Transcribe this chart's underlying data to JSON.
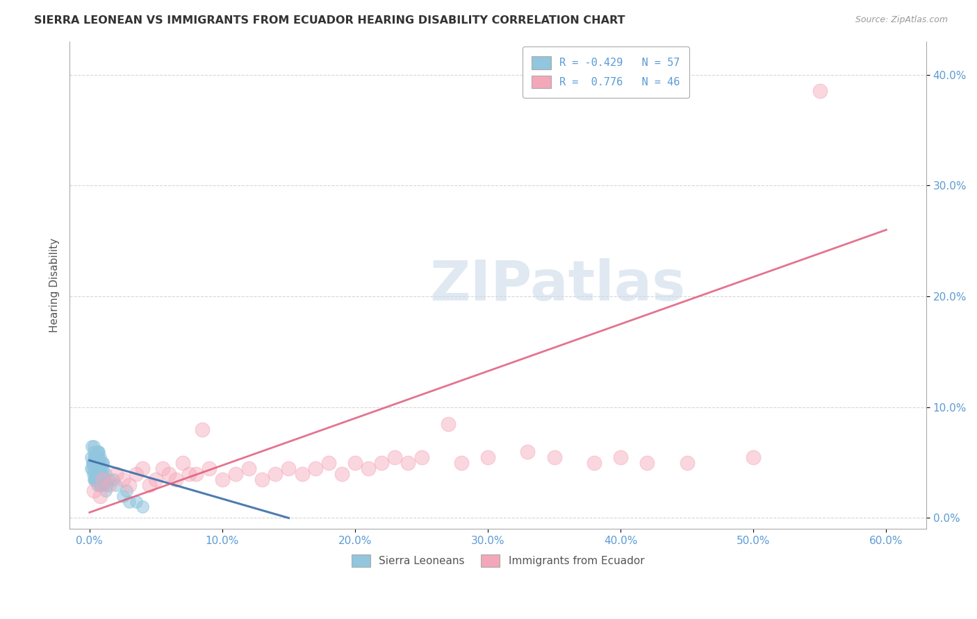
{
  "title": "SIERRA LEONEAN VS IMMIGRANTS FROM ECUADOR HEARING DISABILITY CORRELATION CHART",
  "source": "Source: ZipAtlas.com",
  "xlabel_vals": [
    0.0,
    10.0,
    20.0,
    30.0,
    40.0,
    50.0,
    60.0
  ],
  "ylabel_vals": [
    0.0,
    10.0,
    20.0,
    30.0,
    40.0
  ],
  "xlim": [
    -1.5,
    63.0
  ],
  "ylim": [
    -1.0,
    43.0
  ],
  "ylabel": "Hearing Disability",
  "blue_color": "#92c5de",
  "pink_color": "#f4a7b9",
  "blue_line_color": "#3a6ea8",
  "pink_line_color": "#e05a7a",
  "watermark_text": "ZIPatlas",
  "background_color": "#ffffff",
  "grid_color": "#cccccc",
  "tick_color": "#5b9bd5",
  "legend_label1": "R = -0.429   N = 57",
  "legend_label2": "R =  0.776   N = 46",
  "legend_bottom_label1": "Sierra Leoneans",
  "legend_bottom_label2": "Immigrants from Ecuador",
  "blue_scatter_x": [
    0.1,
    0.2,
    0.3,
    0.4,
    0.5,
    0.6,
    0.7,
    0.8,
    0.9,
    1.0,
    0.15,
    0.25,
    0.35,
    0.45,
    0.55,
    0.65,
    0.75,
    0.85,
    0.95,
    1.1,
    0.1,
    0.2,
    0.3,
    0.5,
    0.7,
    0.9,
    1.2,
    1.5,
    0.4,
    0.6,
    0.8,
    1.0,
    0.3,
    0.5,
    0.7,
    1.3,
    0.4,
    0.6,
    0.8,
    1.0,
    0.2,
    0.4,
    0.6,
    0.8,
    1.0,
    1.2,
    0.3,
    0.5,
    0.7,
    0.9,
    2.5,
    2.0,
    3.0,
    2.8,
    1.8,
    3.5,
    4.0
  ],
  "blue_scatter_y": [
    4.5,
    5.0,
    3.5,
    4.0,
    5.5,
    3.0,
    6.0,
    4.5,
    3.5,
    5.0,
    6.5,
    4.0,
    5.5,
    3.5,
    4.5,
    6.0,
    3.0,
    5.0,
    4.0,
    3.5,
    5.5,
    4.5,
    6.0,
    3.5,
    5.0,
    4.0,
    2.5,
    3.5,
    5.5,
    4.5,
    3.0,
    5.0,
    6.5,
    4.0,
    5.5,
    3.0,
    4.5,
    6.0,
    3.5,
    4.5,
    5.0,
    3.5,
    4.5,
    5.5,
    3.0,
    4.0,
    5.0,
    3.5,
    4.5,
    3.5,
    2.0,
    3.0,
    1.5,
    2.5,
    3.5,
    1.5,
    1.0
  ],
  "pink_scatter_x": [
    0.3,
    0.8,
    1.5,
    2.5,
    3.5,
    4.5,
    5.5,
    6.5,
    7.5,
    8.5,
    1.0,
    2.0,
    3.0,
    4.0,
    5.0,
    6.0,
    7.0,
    8.0,
    9.0,
    10.0,
    11.0,
    12.0,
    13.0,
    14.0,
    15.0,
    16.0,
    17.0,
    18.0,
    19.0,
    20.0,
    21.0,
    22.0,
    23.0,
    24.0,
    25.0,
    28.0,
    30.0,
    33.0,
    35.0,
    38.0,
    40.0,
    42.0,
    45.0,
    50.0,
    55.0,
    27.0
  ],
  "pink_scatter_y": [
    2.5,
    2.0,
    3.0,
    3.5,
    4.0,
    3.0,
    4.5,
    3.5,
    4.0,
    8.0,
    3.5,
    4.0,
    3.0,
    4.5,
    3.5,
    4.0,
    5.0,
    4.0,
    4.5,
    3.5,
    4.0,
    4.5,
    3.5,
    4.0,
    4.5,
    4.0,
    4.5,
    5.0,
    4.0,
    5.0,
    4.5,
    5.0,
    5.5,
    5.0,
    5.5,
    5.0,
    5.5,
    6.0,
    5.5,
    5.0,
    5.5,
    5.0,
    5.0,
    5.5,
    38.5,
    8.5
  ],
  "blue_line_x": [
    0.0,
    15.0
  ],
  "blue_line_y": [
    5.2,
    0.0
  ],
  "pink_line_x": [
    0.0,
    60.0
  ],
  "pink_line_y": [
    0.5,
    26.0
  ]
}
